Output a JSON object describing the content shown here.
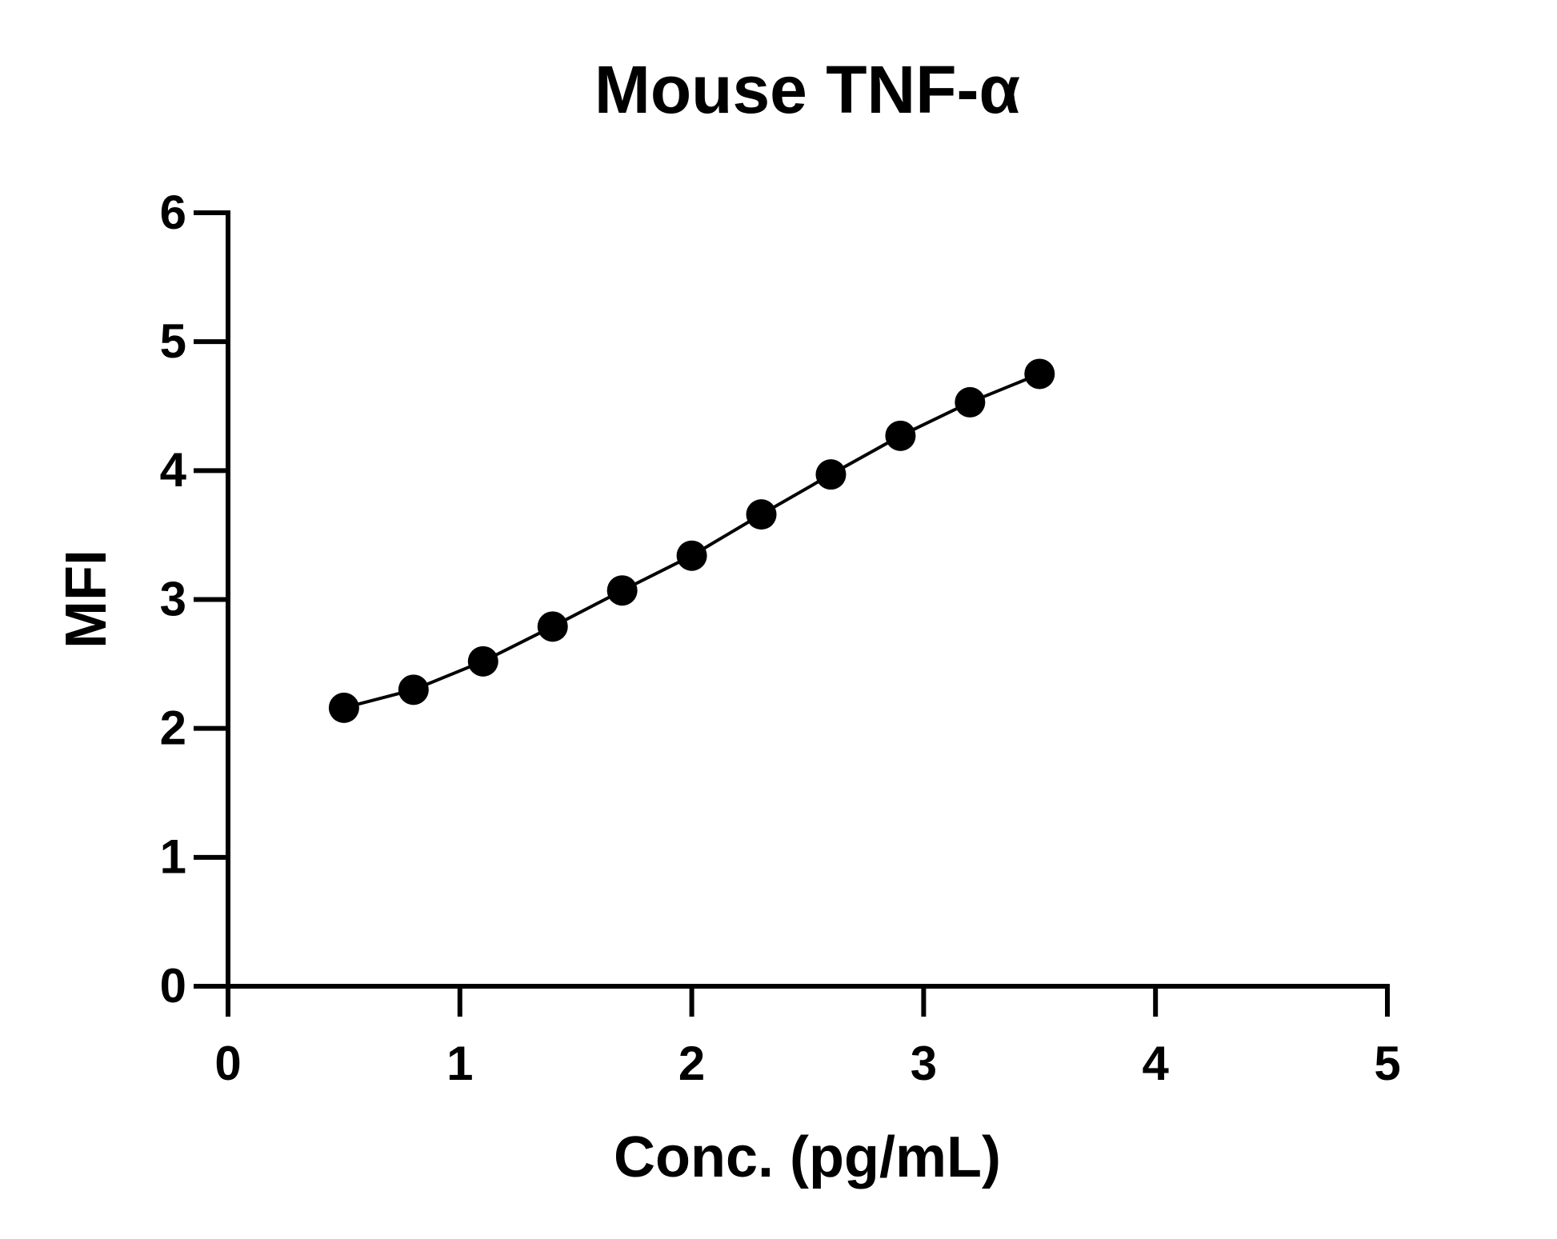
{
  "chart_data": {
    "type": "line",
    "title": "Mouse TNF-α",
    "x_label": "Conc. (pg/mL)",
    "y_label": "MFI",
    "x": [
      0.5,
      0.8,
      1.1,
      1.4,
      1.7,
      2.0,
      2.3,
      2.6,
      2.9,
      3.2,
      3.5
    ],
    "values": [
      2.16,
      2.3,
      2.52,
      2.79,
      3.07,
      3.34,
      3.66,
      3.97,
      4.27,
      4.53,
      4.75
    ],
    "color": "#000000",
    "markers": true,
    "xlim": [
      0,
      5
    ],
    "xticks": [
      0,
      1,
      2,
      3,
      4,
      5
    ],
    "ylim": [
      0,
      6
    ],
    "yticks": [
      0,
      1,
      2,
      3,
      4,
      5,
      6
    ]
  }
}
